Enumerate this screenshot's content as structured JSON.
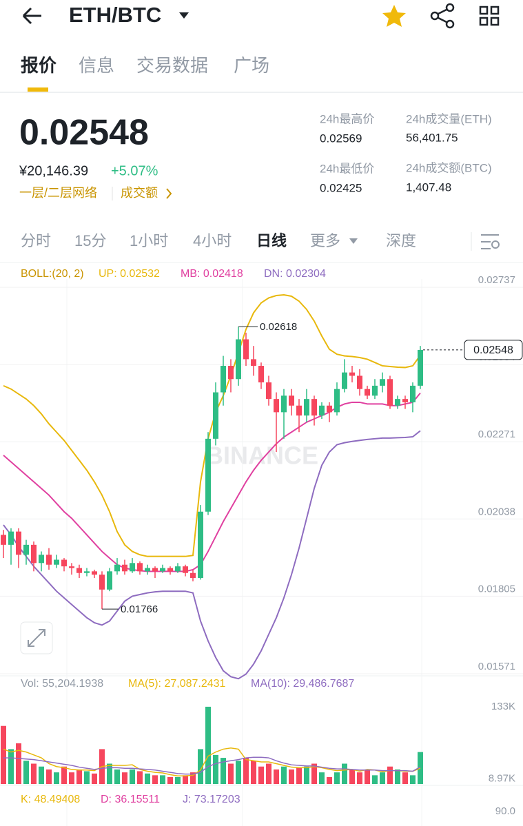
{
  "header": {
    "pair": "ETH/BTC"
  },
  "tabs": [
    "报价",
    "信息",
    "交易数据",
    "广场"
  ],
  "ticker": {
    "price": "0.02548",
    "cny": "¥20,146.39",
    "change": "+5.07%",
    "network": "一层/二层网络",
    "turnover": "成交额"
  },
  "stats": [
    {
      "label": "24h最高价",
      "value": "0.02569"
    },
    {
      "label": "24h成交量(ETH)",
      "value": "56,401.75"
    },
    {
      "label": "24h最低价",
      "value": "0.02425"
    },
    {
      "label": "24h成交额(BTC)",
      "value": "1,407.48"
    }
  ],
  "intervals": [
    "分时",
    "15分",
    "1小时",
    "4小时",
    "日线",
    "更多",
    "深度"
  ],
  "watermark": "BINANCE",
  "chart_data": [
    {
      "type": "candlestick",
      "up_color": "#2ebd85",
      "down_color": "#f6465d",
      "legend": [
        "BOLL:(20, 2)",
        "UP: 0.02532",
        "MB: 0.02418",
        "DN: 0.02304"
      ],
      "open": [
        0.0199,
        0.0196,
        0.02,
        0.0193,
        0.0196,
        0.01905,
        0.0193,
        0.019,
        0.01915,
        0.01895,
        0.0189,
        0.01875,
        0.0188,
        0.0187,
        0.01825,
        0.0188,
        0.019,
        0.0188,
        0.01905,
        0.0188,
        0.0189,
        0.0188,
        0.0189,
        0.0188,
        0.01895,
        0.01875,
        0.0186,
        0.0206,
        0.0228,
        0.0242,
        0.025,
        0.0246,
        0.0258,
        0.0252,
        0.025,
        0.0245,
        0.024,
        0.0236,
        0.0241,
        0.0238,
        0.0235,
        0.024,
        0.0235,
        0.0238,
        0.0236,
        0.0243,
        0.0248,
        0.0247,
        0.0243,
        0.0241,
        0.0244,
        0.0246,
        0.0238,
        0.024,
        0.0239,
        0.0244
      ],
      "high": [
        0.02005,
        0.0201,
        0.0201,
        0.01975,
        0.0197,
        0.0194,
        0.0195,
        0.0193,
        0.0192,
        0.01905,
        0.019,
        0.0189,
        0.01885,
        0.0188,
        0.0189,
        0.0192,
        0.01915,
        0.0192,
        0.0191,
        0.019,
        0.01895,
        0.019,
        0.01895,
        0.01905,
        0.019,
        0.01885,
        0.0208,
        0.023,
        0.0245,
        0.0253,
        0.0252,
        0.02618,
        0.026,
        0.0256,
        0.0251,
        0.0247,
        0.0242,
        0.0243,
        0.0243,
        0.024,
        0.0243,
        0.0241,
        0.0239,
        0.0239,
        0.0245,
        0.0252,
        0.025,
        0.0249,
        0.0244,
        0.0246,
        0.0248,
        0.0247,
        0.0241,
        0.0241,
        0.0245,
        0.0256
      ],
      "low": [
        0.0192,
        0.019,
        0.0189,
        0.019,
        0.0188,
        0.0188,
        0.01885,
        0.0189,
        0.0188,
        0.0187,
        0.0186,
        0.01865,
        0.0186,
        0.01766,
        0.0182,
        0.0187,
        0.0187,
        0.01875,
        0.0187,
        0.0187,
        0.0186,
        0.01875,
        0.0187,
        0.01875,
        0.01865,
        0.0185,
        0.01855,
        0.0205,
        0.0226,
        0.0238,
        0.0242,
        0.0244,
        0.025,
        0.0247,
        0.0243,
        0.0238,
        0.0224,
        0.0228,
        0.0235,
        0.023,
        0.0233,
        0.0232,
        0.0234,
        0.0233,
        0.0235,
        0.0242,
        0.0245,
        0.0241,
        0.024,
        0.024,
        0.0242,
        0.0237,
        0.0237,
        0.0237,
        0.0236,
        0.0243
      ],
      "close": [
        0.0196,
        0.02,
        0.0193,
        0.0196,
        0.01905,
        0.0193,
        0.019,
        0.01915,
        0.01895,
        0.0189,
        0.01875,
        0.0188,
        0.0187,
        0.01825,
        0.0188,
        0.019,
        0.0188,
        0.01905,
        0.0188,
        0.0189,
        0.0188,
        0.0189,
        0.0188,
        0.01895,
        0.01875,
        0.0186,
        0.0206,
        0.0228,
        0.0242,
        0.025,
        0.0246,
        0.0258,
        0.0252,
        0.025,
        0.0245,
        0.024,
        0.0236,
        0.0241,
        0.0238,
        0.0235,
        0.024,
        0.0235,
        0.0238,
        0.0236,
        0.0243,
        0.0248,
        0.0247,
        0.0243,
        0.0241,
        0.0244,
        0.0246,
        0.0238,
        0.024,
        0.0239,
        0.0244,
        0.02548
      ],
      "bands": [
        {
          "color": "#e8b80c",
          "values": [
            0.0244,
            0.0243,
            0.02415,
            0.024,
            0.0238,
            0.02355,
            0.02325,
            0.023,
            0.02275,
            0.02245,
            0.02215,
            0.02185,
            0.0215,
            0.0211,
            0.0206,
            0.02,
            0.0196,
            0.0194,
            0.0193,
            0.01925,
            0.01925,
            0.01925,
            0.01925,
            0.01925,
            0.01925,
            0.01928,
            0.0215,
            0.0228,
            0.0236,
            0.0241,
            0.0247,
            0.0254,
            0.0261,
            0.0266,
            0.0269,
            0.02705,
            0.02712,
            0.02714,
            0.0271,
            0.02695,
            0.0267,
            0.02635,
            0.0259,
            0.0255,
            0.02535,
            0.0253,
            0.02528,
            0.02525,
            0.0252,
            0.0251,
            0.025,
            0.02498,
            0.02496,
            0.02495,
            0.025,
            0.02532
          ]
        },
        {
          "color": "#e040a0",
          "values": [
            0.0223,
            0.0221,
            0.0219,
            0.0217,
            0.0215,
            0.0213,
            0.0211,
            0.02085,
            0.0206,
            0.0204,
            0.02015,
            0.0199,
            0.01965,
            0.0194,
            0.0192,
            0.019,
            0.0189,
            0.01885,
            0.01882,
            0.0188,
            0.0188,
            0.0188,
            0.0188,
            0.0188,
            0.0188,
            0.01885,
            0.019,
            0.0194,
            0.01985,
            0.0203,
            0.0207,
            0.0211,
            0.0215,
            0.02185,
            0.02215,
            0.0224,
            0.02265,
            0.02285,
            0.023,
            0.02315,
            0.0233,
            0.0234,
            0.0235,
            0.0236,
            0.02375,
            0.02385,
            0.0239,
            0.0239,
            0.02385,
            0.02385,
            0.02385,
            0.0238,
            0.0238,
            0.02385,
            0.0239,
            0.02418
          ]
        },
        {
          "color": "#8e6cc0",
          "values": [
            0.0202,
            0.0199,
            0.01955,
            0.01925,
            0.01895,
            0.0187,
            0.01845,
            0.0182,
            0.018,
            0.0178,
            0.0176,
            0.0174,
            0.01725,
            0.01718,
            0.0173,
            0.0176,
            0.0179,
            0.01805,
            0.0181,
            0.01815,
            0.01818,
            0.0182,
            0.0182,
            0.0182,
            0.0182,
            0.01815,
            0.0173,
            0.0167,
            0.0162,
            0.0158,
            0.01562,
            0.01556,
            0.0157,
            0.016,
            0.0164,
            0.0169,
            0.0174,
            0.018,
            0.0187,
            0.0195,
            0.0204,
            0.0213,
            0.022,
            0.0224,
            0.02262,
            0.02268,
            0.02272,
            0.02275,
            0.02278,
            0.0228,
            0.02282,
            0.02282,
            0.02283,
            0.02284,
            0.02286,
            0.02304
          ]
        }
      ],
      "ylim": [
        0.01571,
        0.02737
      ],
      "yticks": [
        0.02737,
        0.02504,
        0.02271,
        0.02038,
        0.01805,
        0.01571
      ],
      "grid": true
    },
    {
      "type": "bar",
      "legend": [
        "Vol: 55,204.1938",
        "MA(5): 27,087.2431",
        "MA(10): 29,486.7687"
      ],
      "values": [
        100000,
        60000,
        70000,
        40000,
        35000,
        30000,
        25000,
        20000,
        30000,
        20000,
        25000,
        22000,
        18000,
        60000,
        35000,
        25000,
        20000,
        25000,
        22000,
        18000,
        15000,
        15000,
        12000,
        12000,
        15000,
        20000,
        60000,
        133000,
        50000,
        45000,
        35000,
        40000,
        45000,
        40000,
        30000,
        35000,
        25000,
        30000,
        25000,
        28000,
        30000,
        35000,
        20000,
        12000,
        20000,
        35000,
        25000,
        20000,
        25000,
        15000,
        20000,
        30000,
        25000,
        20000,
        15000,
        55000
      ],
      "series": [
        {
          "color": "#e8b80c",
          "values": [
            60000,
            55000,
            58000,
            55000,
            50000,
            45000,
            35000,
            30000,
            28000,
            25000,
            24000,
            24000,
            23000,
            30000,
            32000,
            32000,
            32000,
            33000,
            25000,
            22000,
            20000,
            19000,
            16000,
            14000,
            14000,
            15000,
            24000,
            48000,
            55000,
            60000,
            62000,
            60000,
            42000,
            40000,
            38000,
            38000,
            35000,
            32000,
            29000,
            28000,
            28000,
            30000,
            28000,
            25000,
            23000,
            24000,
            25000,
            22000,
            25000,
            24000,
            21000,
            23000,
            23000,
            22000,
            22000,
            27087.2431
          ]
        },
        {
          "color": "#8e6cc0",
          "values": [
            45000,
            45000,
            44000,
            43000,
            42000,
            40000,
            38000,
            36000,
            34000,
            32000,
            29000,
            27000,
            25000,
            27000,
            28000,
            28000,
            27000,
            27000,
            26000,
            25000,
            24000,
            22000,
            20000,
            18000,
            17000,
            17000,
            20000,
            30000,
            35000,
            38000,
            40000,
            42000,
            45000,
            46000,
            46000,
            45000,
            40000,
            36000,
            33000,
            32000,
            31000,
            31000,
            29000,
            27000,
            26000,
            26000,
            25000,
            24000,
            24000,
            24000,
            23000,
            23000,
            23000,
            23000,
            22000,
            29486.7687
          ]
        }
      ],
      "ylim": [
        0,
        140000
      ],
      "yticks": [
        {
          "value": 133000,
          "label": "133K"
        },
        {
          "value": 8970,
          "label": "8.97K"
        }
      ]
    },
    {
      "type": "line",
      "legend": [
        "K: 48.49408",
        "D: 36.15511",
        "J: 73.17203"
      ],
      "ylim": [
        0,
        100
      ],
      "yticks": [
        {
          "value": 90,
          "label": "90.0"
        }
      ]
    }
  ]
}
